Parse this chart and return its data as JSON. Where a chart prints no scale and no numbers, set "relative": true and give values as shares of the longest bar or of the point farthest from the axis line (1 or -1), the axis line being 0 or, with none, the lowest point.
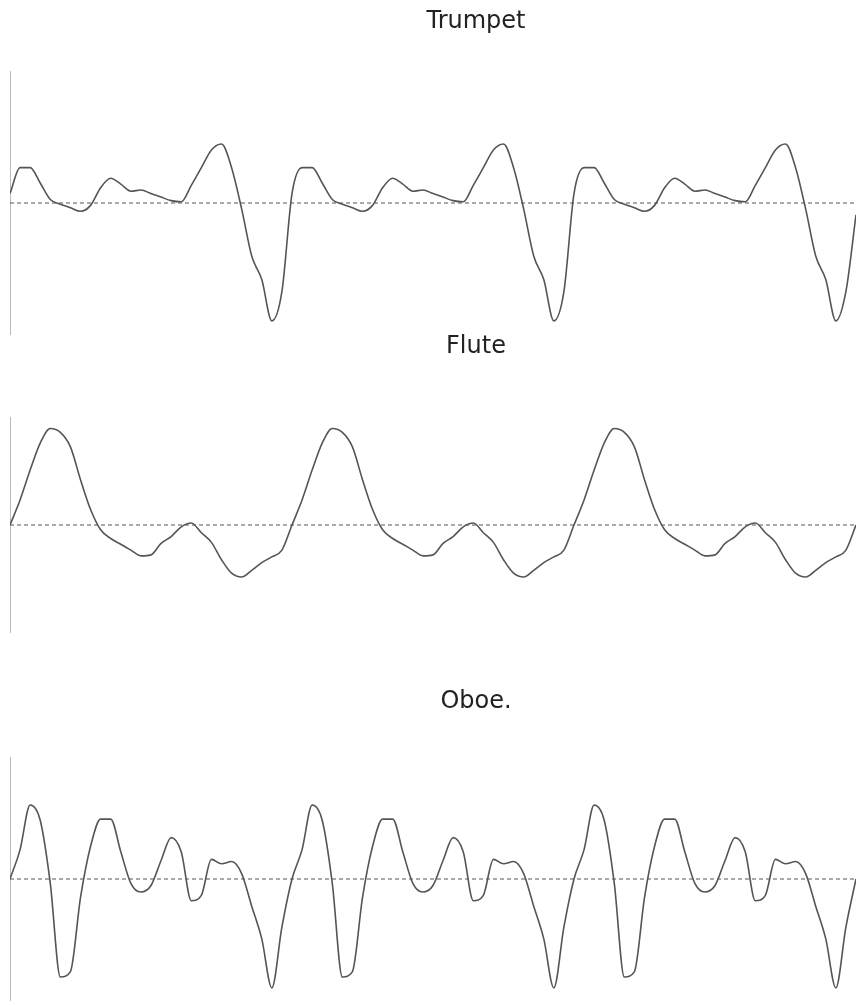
{
  "chart_data": [
    {
      "type": "line",
      "title": "Trumpet",
      "relative": true,
      "marker": "none",
      "categories": [
        null,
        null,
        null,
        null,
        null,
        null,
        null,
        null,
        null,
        null,
        null,
        null,
        null,
        null,
        null,
        null,
        null,
        null,
        null,
        null,
        null,
        null,
        null,
        null,
        null,
        null,
        null,
        null,
        null,
        null,
        null,
        null,
        null,
        null,
        null,
        null,
        null,
        null,
        null,
        null,
        null,
        null,
        null,
        null,
        null,
        null,
        null,
        null,
        null,
        null,
        null,
        null,
        null,
        null,
        null,
        null,
        null,
        null,
        null,
        null,
        null,
        null,
        null,
        null,
        null,
        null,
        null,
        null,
        null,
        null,
        null,
        null,
        null,
        null,
        null,
        null,
        null,
        null,
        null,
        null,
        null,
        null,
        null,
        null,
        null
      ],
      "series": [
        {
          "color": "#555555",
          "values": [
            0.08,
            0.3,
            0.3,
            0.17,
            0.03,
            -0.01,
            -0.04,
            -0.07,
            -0.02,
            0.13,
            0.21,
            0.16,
            0.1,
            0.11,
            0.08,
            0.05,
            0.02,
            0.01,
            0.15,
            0.3,
            0.45,
            0.5,
            0.3,
            -0.05,
            -0.45,
            -0.65,
            -1,
            -0.75,
            0.08,
            0.3,
            0.3,
            0.17,
            0.03,
            -0.01,
            -0.04,
            -0.07,
            -0.02,
            0.13,
            0.21,
            0.16,
            0.1,
            0.11,
            0.08,
            0.05,
            0.02,
            0.01,
            0.15,
            0.3,
            0.45,
            0.5,
            0.3,
            -0.05,
            -0.45,
            -0.65,
            -1,
            -0.75,
            0.08,
            0.3,
            0.3,
            0.17,
            0.03,
            -0.01,
            -0.04,
            -0.07,
            -0.02,
            0.13,
            0.21,
            0.16,
            0.1,
            0.11,
            0.08,
            0.05,
            0.02,
            0.01,
            0.15,
            0.3,
            0.45,
            0.5,
            0.3,
            -0.05,
            -0.45,
            -0.65,
            -1,
            -0.75,
            -0.1
          ]
        }
      ],
      "ref_lines": [
        {
          "axis": "y",
          "value": 0,
          "color": "#555555",
          "line_style": "dashed"
        }
      ]
    },
    {
      "type": "line",
      "title": "Flute",
      "relative": true,
      "marker": "none",
      "categories": [
        null,
        null,
        null,
        null,
        null,
        null,
        null,
        null,
        null,
        null,
        null,
        null,
        null,
        null,
        null,
        null,
        null,
        null,
        null,
        null,
        null,
        null,
        null,
        null,
        null,
        null,
        null,
        null,
        null,
        null,
        null,
        null,
        null,
        null,
        null,
        null,
        null,
        null,
        null,
        null,
        null,
        null,
        null,
        null,
        null,
        null,
        null,
        null,
        null,
        null,
        null,
        null,
        null,
        null,
        null,
        null,
        null,
        null,
        null,
        null,
        null,
        null,
        null,
        null,
        null,
        null,
        null,
        null,
        null,
        null,
        null,
        null,
        null,
        null,
        null,
        null,
        null,
        null,
        null,
        null,
        null,
        null,
        null,
        null,
        null
      ],
      "series": [
        {
          "color": "#555555",
          "values": [
            0,
            0.26,
            0.57,
            0.85,
            1,
            0.96,
            0.81,
            0.47,
            0.16,
            -0.05,
            -0.14,
            -0.2,
            -0.26,
            -0.32,
            -0.31,
            -0.19,
            -0.12,
            -0.02,
            0.02,
            -0.08,
            -0.18,
            -0.36,
            -0.5,
            -0.54,
            -0.47,
            -0.39,
            -0.33,
            -0.26,
            0,
            0.26,
            0.57,
            0.85,
            1,
            0.96,
            0.81,
            0.47,
            0.16,
            -0.05,
            -0.14,
            -0.2,
            -0.26,
            -0.32,
            -0.31,
            -0.19,
            -0.12,
            -0.02,
            0.02,
            -0.08,
            -0.18,
            -0.36,
            -0.5,
            -0.54,
            -0.47,
            -0.39,
            -0.33,
            -0.26,
            0,
            0.26,
            0.57,
            0.85,
            1,
            0.96,
            0.81,
            0.47,
            0.16,
            -0.05,
            -0.14,
            -0.2,
            -0.26,
            -0.32,
            -0.31,
            -0.19,
            -0.12,
            -0.02,
            0.02,
            -0.08,
            -0.18,
            -0.36,
            -0.5,
            -0.54,
            -0.47,
            -0.39,
            -0.33,
            -0.26,
            0
          ]
        }
      ],
      "ref_lines": [
        {
          "axis": "y",
          "value": 0,
          "color": "#555555",
          "line_style": "dashed"
        }
      ]
    },
    {
      "type": "line",
      "title": "Oboe.",
      "relative": true,
      "marker": "none",
      "categories": [
        null,
        null,
        null,
        null,
        null,
        null,
        null,
        null,
        null,
        null,
        null,
        null,
        null,
        null,
        null,
        null,
        null,
        null,
        null,
        null,
        null,
        null,
        null,
        null,
        null,
        null,
        null,
        null,
        null,
        null,
        null,
        null,
        null,
        null,
        null,
        null,
        null,
        null,
        null,
        null,
        null,
        null,
        null,
        null,
        null,
        null,
        null,
        null,
        null,
        null,
        null,
        null,
        null,
        null,
        null,
        null,
        null,
        null,
        null,
        null,
        null,
        null,
        null,
        null,
        null,
        null,
        null,
        null,
        null,
        null,
        null,
        null,
        null,
        null,
        null,
        null,
        null,
        null,
        null,
        null,
        null,
        null,
        null,
        null,
        null
      ],
      "series": [
        {
          "color": "#555555",
          "values": [
            0,
            0.27,
            0.68,
            0.54,
            -0.04,
            -0.9,
            -0.85,
            -0.17,
            0.3,
            0.55,
            0.55,
            0.25,
            -0.04,
            -0.12,
            -0.06,
            0.17,
            0.38,
            0.25,
            -0.2,
            -0.15,
            0.18,
            0.14,
            0.16,
            0.05,
            -0.25,
            -0.55,
            -1,
            -0.44,
            0,
            0.27,
            0.68,
            0.54,
            -0.04,
            -0.9,
            -0.85,
            -0.17,
            0.3,
            0.55,
            0.55,
            0.25,
            -0.04,
            -0.12,
            -0.06,
            0.17,
            0.38,
            0.25,
            -0.2,
            -0.15,
            0.18,
            0.14,
            0.16,
            0.05,
            -0.25,
            -0.55,
            -1,
            -0.44,
            0,
            0.27,
            0.68,
            0.54,
            -0.04,
            -0.9,
            -0.85,
            -0.17,
            0.3,
            0.55,
            0.55,
            0.25,
            -0.04,
            -0.12,
            -0.06,
            0.17,
            0.38,
            0.25,
            -0.2,
            -0.15,
            0.18,
            0.14,
            0.16,
            0.05,
            -0.25,
            -0.55,
            -1,
            -0.44,
            0
          ]
        }
      ],
      "ref_lines": [
        {
          "axis": "y",
          "value": 0,
          "color": "#555555",
          "line_style": "dashed"
        }
      ]
    }
  ]
}
